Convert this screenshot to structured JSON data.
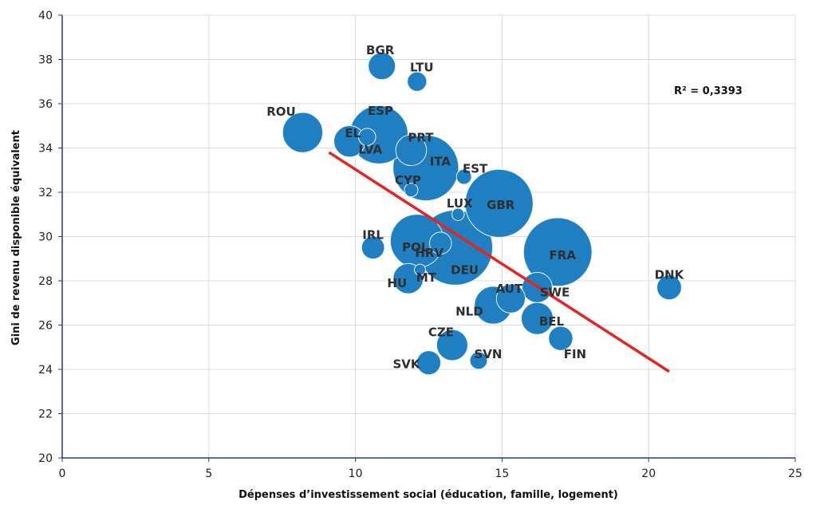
{
  "chart_data": {
    "type": "scatter",
    "title": "",
    "xlabel": "Dépenses d’investissement social (éducation, famille, logement)",
    "ylabel": "Gini de revenu disponible équivalent",
    "xlim": [
      0,
      25
    ],
    "ylim": [
      20,
      40
    ],
    "x_ticks": [
      "0",
      "5",
      "10",
      "15",
      "20",
      "25"
    ],
    "y_ticks": [
      "20",
      "22",
      "24",
      "26",
      "28",
      "30",
      "32",
      "34",
      "36",
      "38",
      "40"
    ],
    "grid": true,
    "bubble_color": "#1f7fc0",
    "trend_color": "#e52521",
    "annotation": "R² = 0,3393",
    "points": [
      {
        "label": "BGR",
        "x": 10.9,
        "y": 37.7,
        "size": 7.4
      },
      {
        "label": "LTU",
        "x": 12.1,
        "y": 37.0,
        "size": 2.9
      },
      {
        "label": "ROU",
        "x": 8.2,
        "y": 34.7,
        "size": 19.6
      },
      {
        "label": "EL",
        "x": 9.8,
        "y": 34.3,
        "size": 10.8
      },
      {
        "label": "ESP",
        "x": 10.8,
        "y": 34.6,
        "size": 46.4
      },
      {
        "label": "LVA",
        "x": 10.4,
        "y": 34.5,
        "size": 2.0
      },
      {
        "label": "PRT",
        "x": 11.9,
        "y": 33.9,
        "size": 10.3
      },
      {
        "label": "ITA",
        "x": 12.4,
        "y": 33.1,
        "size": 60.6
      },
      {
        "label": "EST",
        "x": 13.7,
        "y": 32.7,
        "size": 1.3
      },
      {
        "label": "CYP",
        "x": 11.9,
        "y": 32.1,
        "size": 0.9
      },
      {
        "label": "GBR",
        "x": 14.9,
        "y": 31.5,
        "size": 65.4
      },
      {
        "label": "LUX",
        "x": 13.5,
        "y": 31.0,
        "size": 0.6
      },
      {
        "label": "IRL",
        "x": 10.6,
        "y": 29.5,
        "size": 4.7
      },
      {
        "label": "POL",
        "x": 12.1,
        "y": 29.8,
        "size": 38.0
      },
      {
        "label": "HRV",
        "x": 12.9,
        "y": 29.7,
        "size": 4.2
      },
      {
        "label": "DEU",
        "x": 13.4,
        "y": 29.5,
        "size": 81.2
      },
      {
        "label": "FRA",
        "x": 16.9,
        "y": 29.3,
        "size": 66.4
      },
      {
        "label": "DNK",
        "x": 20.7,
        "y": 27.7,
        "size": 5.7
      },
      {
        "label": "HU",
        "x": 11.8,
        "y": 28.1,
        "size": 9.8
      },
      {
        "label": "MT",
        "x": 12.2,
        "y": 28.5,
        "size": 0.4
      },
      {
        "label": "AUT",
        "x": 15.3,
        "y": 27.2,
        "size": 8.7
      },
      {
        "label": "SWE",
        "x": 16.2,
        "y": 27.7,
        "size": 9.8
      },
      {
        "label": "NLD",
        "x": 14.7,
        "y": 26.9,
        "size": 16.9
      },
      {
        "label": "BEL",
        "x": 16.2,
        "y": 26.3,
        "size": 11.3
      },
      {
        "label": "FIN",
        "x": 17.0,
        "y": 25.4,
        "size": 5.5
      },
      {
        "label": "CZE",
        "x": 13.3,
        "y": 25.1,
        "size": 10.6
      },
      {
        "label": "SVN",
        "x": 14.2,
        "y": 24.4,
        "size": 2.1
      },
      {
        "label": "SVK",
        "x": 12.5,
        "y": 24.3,
        "size": 5.4
      }
    ],
    "trendline": {
      "x": [
        9.1,
        20.7
      ],
      "y": [
        33.8,
        23.9
      ]
    }
  }
}
